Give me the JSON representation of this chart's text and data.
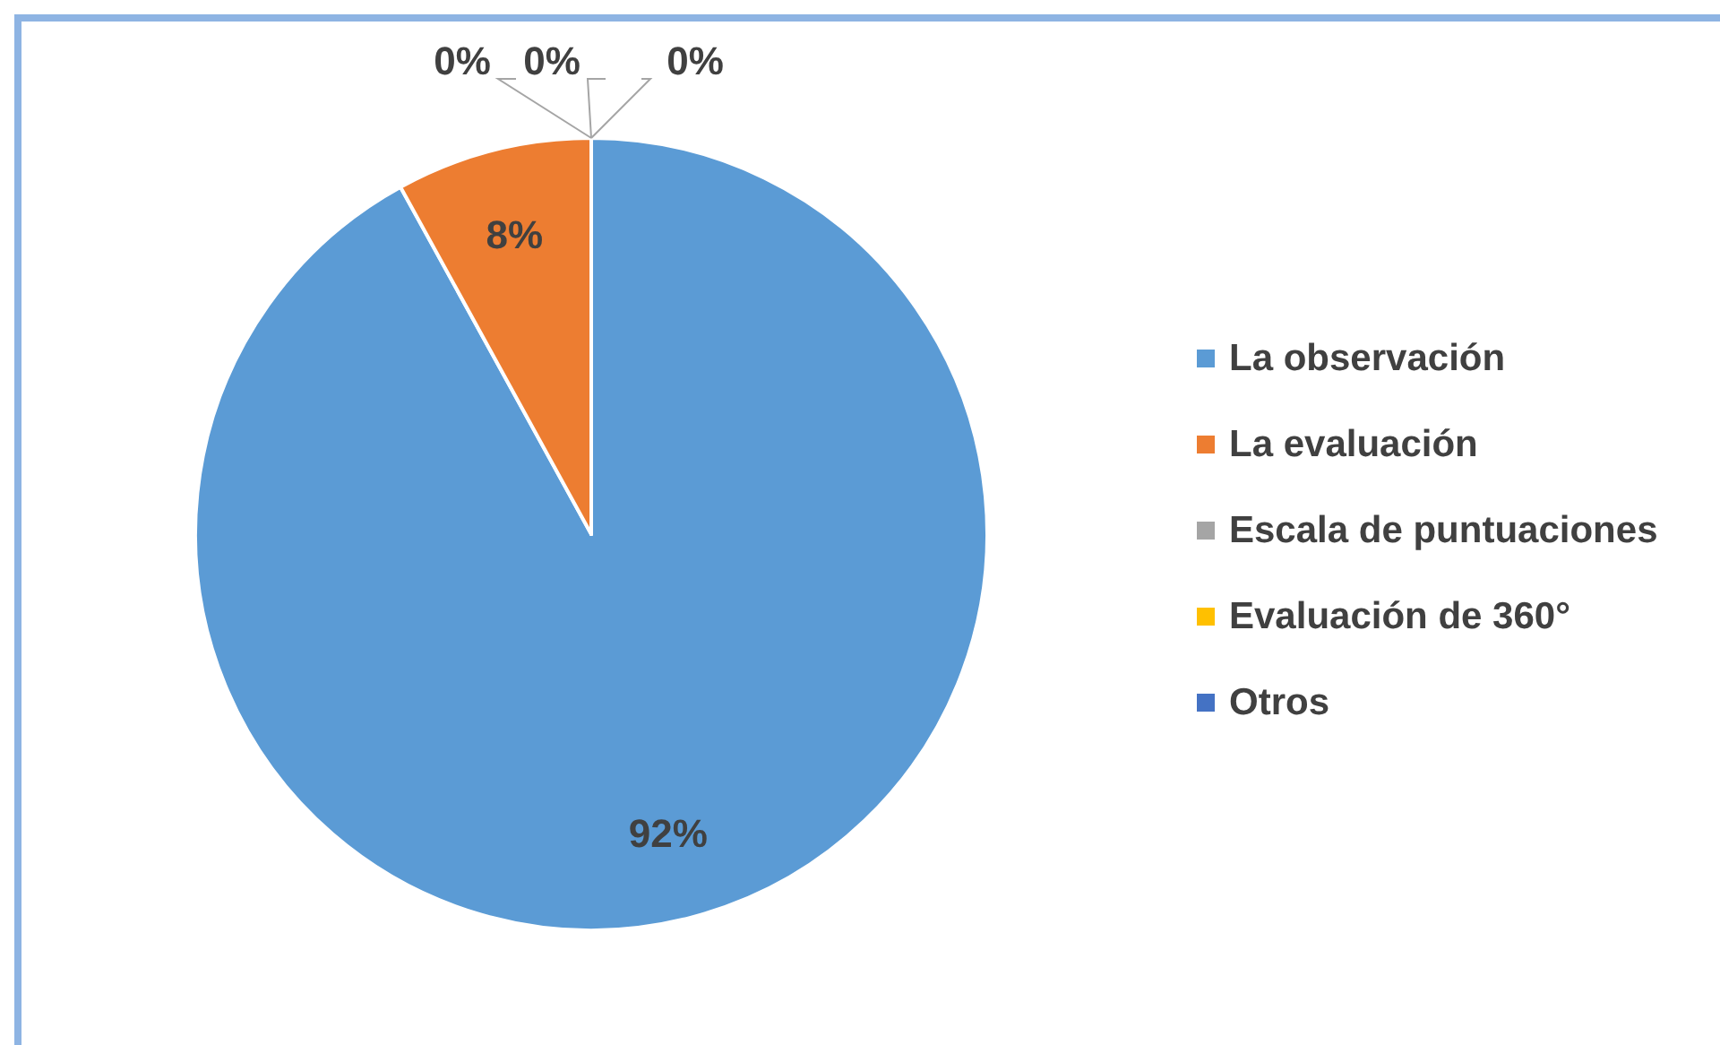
{
  "chart_data": {
    "type": "pie",
    "categories": [
      "La observación",
      "La evaluación",
      "Escala de puntuaciones",
      "Evaluación de 360°",
      "Otros"
    ],
    "values": [
      92,
      8,
      0,
      0,
      0
    ],
    "colors": [
      "#5b9bd5",
      "#ed7d31",
      "#a5a5a5",
      "#ffc000",
      "#4472c4"
    ],
    "value_labels": [
      "92%",
      "8%",
      "0%",
      "0%",
      "0%"
    ],
    "legend": "right"
  }
}
